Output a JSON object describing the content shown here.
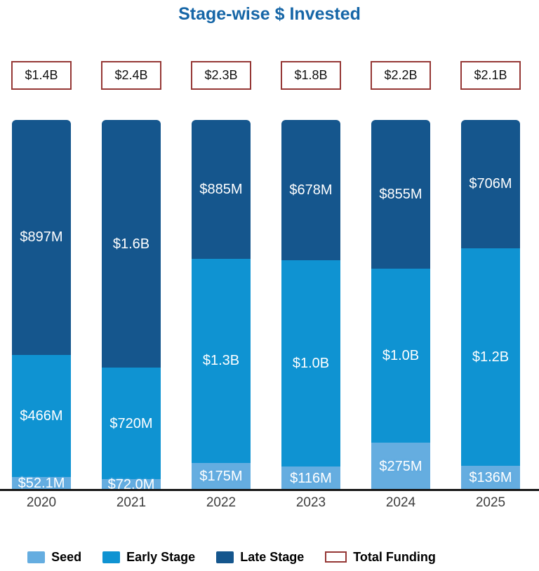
{
  "title": "Stage-wise $ Invested",
  "colors": {
    "title_text": "#1666a7",
    "box_border": "#953735",
    "axis_line": "#161616",
    "year_text": "#3d3d3d",
    "segment_label_text": "#ffffff",
    "seed": "#65ade0",
    "early_stage": "#0f93d2",
    "late_stage": "#15568d"
  },
  "chart_data": {
    "type": "bar",
    "stacked": true,
    "normalized_height": true,
    "title": "Stage-wise $ Invested",
    "xlabel": "",
    "ylabel": "",
    "grid": false,
    "legend_position": "bottom",
    "categories": [
      "2020",
      "2021",
      "2022",
      "2023",
      "2024",
      "2025"
    ],
    "totals": {
      "name": "Total Funding",
      "labels": [
        "$1.4B",
        "$2.4B",
        "$2.3B",
        "$1.8B",
        "$2.2B",
        "$2.1B"
      ]
    },
    "series": [
      {
        "name": "Seed",
        "color": "#65ade0",
        "labels": [
          "$52.1M",
          "$72.0M",
          "$175M",
          "$116M",
          "$275M",
          "$136M"
        ],
        "values_musd": [
          52.1,
          72.0,
          175,
          116,
          275,
          136
        ]
      },
      {
        "name": "Early Stage",
        "color": "#0f93d2",
        "labels": [
          "$466M",
          "$720M",
          "$1.3B",
          "$1.0B",
          "$1.0B",
          "$1.2B"
        ],
        "values_musd": [
          466,
          720,
          1300,
          1000,
          1000,
          1200
        ]
      },
      {
        "name": "Late Stage",
        "color": "#15568d",
        "labels": [
          "$897M",
          "$1.6B",
          "$885M",
          "$678M",
          "$855M",
          "$706M"
        ],
        "values_musd": [
          897,
          1600,
          885,
          678,
          855,
          706
        ]
      }
    ],
    "legend": [
      {
        "label": "Seed",
        "swatch_color": "#65ade0",
        "swatch_style": "filled"
      },
      {
        "label": "Early Stage",
        "swatch_color": "#0f93d2",
        "swatch_style": "filled"
      },
      {
        "label": "Late Stage",
        "swatch_color": "#15568d",
        "swatch_style": "filled"
      },
      {
        "label": "Total Funding",
        "swatch_color": "#953735",
        "swatch_style": "outline"
      }
    ]
  }
}
